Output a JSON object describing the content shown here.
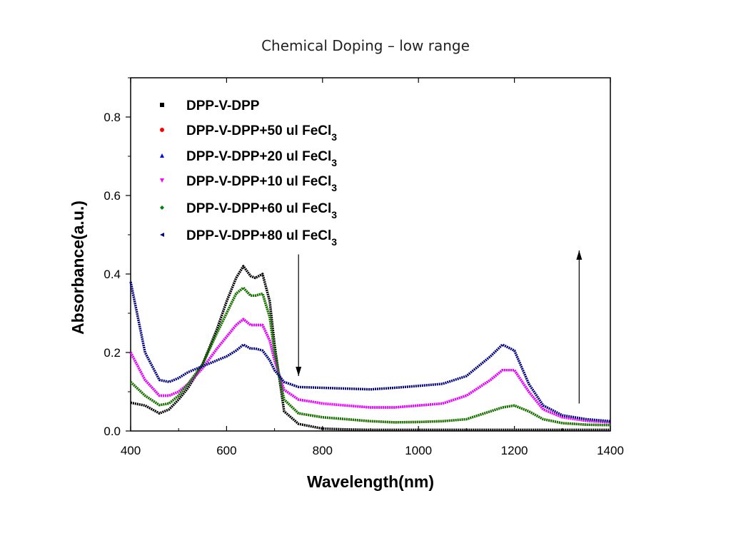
{
  "page": {
    "title": "Chemical Doping – low range"
  },
  "chart_data": {
    "type": "line",
    "title": "",
    "xlabel": "Wavelength(nm)",
    "ylabel": "Absorbance(a.u.)",
    "xlim": [
      400,
      1400
    ],
    "ylim": [
      0,
      0.9
    ],
    "xticks": [
      400,
      600,
      800,
      1000,
      1200,
      1400
    ],
    "yticks": [
      0.0,
      0.2,
      0.4,
      0.6,
      0.8
    ],
    "xtick_labels": [
      "400",
      "600",
      "800",
      "1000",
      "1200",
      "1400"
    ],
    "ytick_labels": [
      "0.0",
      "0.2",
      "0.4",
      "0.6",
      "0.8"
    ],
    "grid": false,
    "legend_position": "top-left",
    "x": [
      400,
      430,
      460,
      480,
      500,
      520,
      550,
      580,
      600,
      620,
      635,
      650,
      660,
      675,
      690,
      700,
      720,
      750,
      800,
      850,
      900,
      950,
      1000,
      1050,
      1100,
      1150,
      1175,
      1200,
      1230,
      1260,
      1300,
      1350,
      1400
    ],
    "series": [
      {
        "name": "DPP-V-DPP",
        "color": "#000000",
        "marker": "square",
        "values": [
          0.072,
          0.065,
          0.045,
          0.055,
          0.08,
          0.11,
          0.17,
          0.26,
          0.33,
          0.39,
          0.42,
          0.395,
          0.39,
          0.4,
          0.33,
          0.22,
          0.05,
          0.018,
          0.006,
          0.004,
          0.003,
          0.003,
          0.003,
          0.003,
          0.003,
          0.003,
          0.003,
          0.003,
          0.003,
          0.003,
          0.003,
          0.003,
          0.003
        ]
      },
      {
        "name": "DPP-V-DPP+50 ul FeCl",
        "sub": "3",
        "color": "#ff0000",
        "marker": "circle",
        "values": [
          0.125,
          0.09,
          0.066,
          0.07,
          0.09,
          0.12,
          0.17,
          0.25,
          0.3,
          0.35,
          0.365,
          0.345,
          0.345,
          0.35,
          0.29,
          0.2,
          0.08,
          0.045,
          0.035,
          0.03,
          0.025,
          0.022,
          0.023,
          0.025,
          0.03,
          0.05,
          0.06,
          0.065,
          0.05,
          0.03,
          0.02,
          0.016,
          0.015
        ]
      },
      {
        "name": "DPP-V-DPP+20 ul FeCl",
        "sub": "3",
        "color": "#0000ff",
        "marker": "triangle-up",
        "values": [
          0.2,
          0.13,
          0.09,
          0.09,
          0.1,
          0.12,
          0.16,
          0.21,
          0.24,
          0.27,
          0.285,
          0.27,
          0.27,
          0.27,
          0.23,
          0.18,
          0.105,
          0.08,
          0.07,
          0.065,
          0.06,
          0.06,
          0.065,
          0.07,
          0.09,
          0.13,
          0.155,
          0.155,
          0.1,
          0.055,
          0.035,
          0.026,
          0.022
        ]
      },
      {
        "name": "DPP-V-DPP+10 ul FeCl",
        "sub": "3",
        "color": "#ff00ff",
        "marker": "triangle-down",
        "values": [
          0.2,
          0.13,
          0.09,
          0.09,
          0.1,
          0.12,
          0.16,
          0.21,
          0.24,
          0.27,
          0.285,
          0.27,
          0.27,
          0.27,
          0.23,
          0.18,
          0.105,
          0.08,
          0.07,
          0.065,
          0.06,
          0.06,
          0.065,
          0.07,
          0.09,
          0.13,
          0.155,
          0.155,
          0.1,
          0.055,
          0.035,
          0.026,
          0.022
        ]
      },
      {
        "name": "DPP-V-DPP+60 ul FeCl",
        "sub": "3",
        "color": "#008000",
        "marker": "diamond",
        "values": [
          0.125,
          0.09,
          0.066,
          0.07,
          0.09,
          0.12,
          0.17,
          0.25,
          0.3,
          0.35,
          0.365,
          0.345,
          0.345,
          0.35,
          0.29,
          0.2,
          0.08,
          0.045,
          0.035,
          0.03,
          0.025,
          0.022,
          0.023,
          0.025,
          0.03,
          0.05,
          0.06,
          0.065,
          0.05,
          0.03,
          0.02,
          0.016,
          0.015
        ]
      },
      {
        "name": "DPP-V-DPP+80 ul FeCl",
        "sub": "3",
        "color": "#000080",
        "marker": "triangle-left",
        "values": [
          0.38,
          0.2,
          0.13,
          0.125,
          0.135,
          0.15,
          0.165,
          0.18,
          0.19,
          0.205,
          0.22,
          0.21,
          0.21,
          0.205,
          0.18,
          0.155,
          0.125,
          0.112,
          0.11,
          0.108,
          0.106,
          0.11,
          0.115,
          0.12,
          0.14,
          0.19,
          0.22,
          0.205,
          0.12,
          0.065,
          0.04,
          0.03,
          0.025
        ]
      }
    ],
    "annotations": [
      {
        "type": "arrow",
        "direction": "down",
        "x": 750,
        "y_from": 0.45,
        "y_to": 0.14
      },
      {
        "type": "arrow",
        "direction": "up",
        "x": 1335,
        "y_from": 0.07,
        "y_to": 0.46
      }
    ]
  }
}
